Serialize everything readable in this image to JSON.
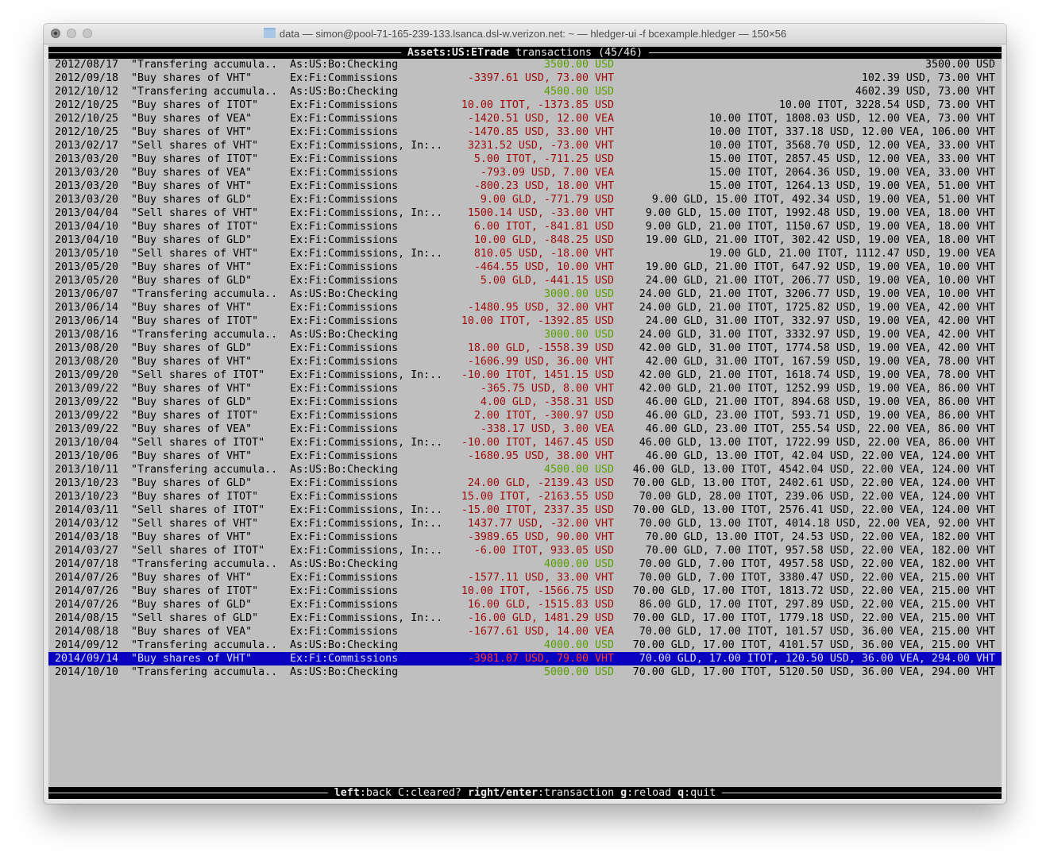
{
  "window": {
    "title": "data — simon@pool-71-165-239-133.lsanca.dsl-w.verizon.net: ~ — hledger-ui -f bcexample.hledger — 150×56"
  },
  "header": {
    "account": "Assets:US:ETrade",
    "suffix": " transactions (45/46)"
  },
  "footer": [
    {
      "key": "left",
      "action": ":back "
    },
    {
      "key": "C",
      "action": ":cleared? ",
      "plain": true
    },
    {
      "key": "right/enter",
      "action": ":transaction "
    },
    {
      "key": "g",
      "action": ":reload "
    },
    {
      "key": "q",
      "action": ":quit"
    }
  ],
  "colors": {
    "terminal_bg": "#bfbfbf",
    "negative": "#9c0a0a",
    "positive": "#58a000",
    "selection": "#0a00bf"
  },
  "selected_index": 44,
  "rows": [
    {
      "date": "2012/08/17",
      "desc": "\"Transfering accumula..",
      "account": "As:US:Bo:Checking",
      "change": "3500.00 USD",
      "tone": "green",
      "balance": "3500.00 USD"
    },
    {
      "date": "2012/09/18",
      "desc": "\"Buy shares of VHT\"",
      "account": "Ex:Fi:Commissions",
      "change": "-3397.61 USD, 73.00 VHT",
      "tone": "red",
      "balance": "102.39 USD, 73.00 VHT"
    },
    {
      "date": "2012/10/12",
      "desc": "\"Transfering accumula..",
      "account": "As:US:Bo:Checking",
      "change": "4500.00 USD",
      "tone": "green",
      "balance": "4602.39 USD, 73.00 VHT"
    },
    {
      "date": "2012/10/25",
      "desc": "\"Buy shares of ITOT\"",
      "account": "Ex:Fi:Commissions",
      "change": "10.00 ITOT, -1373.85 USD",
      "tone": "red",
      "balance": "10.00 ITOT, 3228.54 USD, 73.00 VHT"
    },
    {
      "date": "2012/10/25",
      "desc": "\"Buy shares of VEA\"",
      "account": "Ex:Fi:Commissions",
      "change": "-1420.51 USD, 12.00 VEA",
      "tone": "red",
      "balance": "10.00 ITOT, 1808.03 USD, 12.00 VEA, 73.00 VHT"
    },
    {
      "date": "2012/10/25",
      "desc": "\"Buy shares of VHT\"",
      "account": "Ex:Fi:Commissions",
      "change": "-1470.85 USD, 33.00 VHT",
      "tone": "red",
      "balance": "10.00 ITOT, 337.18 USD, 12.00 VEA, 106.00 VHT"
    },
    {
      "date": "2013/02/17",
      "desc": "\"Sell shares of VHT\"",
      "account": "Ex:Fi:Commissions, In:..",
      "change": "3231.52 USD, -73.00 VHT",
      "tone": "red",
      "balance": "10.00 ITOT, 3568.70 USD, 12.00 VEA, 33.00 VHT"
    },
    {
      "date": "2013/03/20",
      "desc": "\"Buy shares of ITOT\"",
      "account": "Ex:Fi:Commissions",
      "change": "5.00 ITOT, -711.25 USD",
      "tone": "red",
      "balance": "15.00 ITOT, 2857.45 USD, 12.00 VEA, 33.00 VHT"
    },
    {
      "date": "2013/03/20",
      "desc": "\"Buy shares of VEA\"",
      "account": "Ex:Fi:Commissions",
      "change": "-793.09 USD, 7.00 VEA",
      "tone": "red",
      "balance": "15.00 ITOT, 2064.36 USD, 19.00 VEA, 33.00 VHT"
    },
    {
      "date": "2013/03/20",
      "desc": "\"Buy shares of VHT\"",
      "account": "Ex:Fi:Commissions",
      "change": "-800.23 USD, 18.00 VHT",
      "tone": "red",
      "balance": "15.00 ITOT, 1264.13 USD, 19.00 VEA, 51.00 VHT"
    },
    {
      "date": "2013/03/20",
      "desc": "\"Buy shares of GLD\"",
      "account": "Ex:Fi:Commissions",
      "change": "9.00 GLD, -771.79 USD",
      "tone": "red",
      "balance": "9.00 GLD, 15.00 ITOT, 492.34 USD, 19.00 VEA, 51.00 VHT"
    },
    {
      "date": "2013/04/04",
      "desc": "\"Sell shares of VHT\"",
      "account": "Ex:Fi:Commissions, In:..",
      "change": "1500.14 USD, -33.00 VHT",
      "tone": "red",
      "balance": "9.00 GLD, 15.00 ITOT, 1992.48 USD, 19.00 VEA, 18.00 VHT"
    },
    {
      "date": "2013/04/10",
      "desc": "\"Buy shares of ITOT\"",
      "account": "Ex:Fi:Commissions",
      "change": "6.00 ITOT, -841.81 USD",
      "tone": "red",
      "balance": "9.00 GLD, 21.00 ITOT, 1150.67 USD, 19.00 VEA, 18.00 VHT"
    },
    {
      "date": "2013/04/10",
      "desc": "\"Buy shares of GLD\"",
      "account": "Ex:Fi:Commissions",
      "change": "10.00 GLD, -848.25 USD",
      "tone": "red",
      "balance": "19.00 GLD, 21.00 ITOT, 302.42 USD, 19.00 VEA, 18.00 VHT"
    },
    {
      "date": "2013/05/10",
      "desc": "\"Sell shares of VHT\"",
      "account": "Ex:Fi:Commissions, In:..",
      "change": "810.05 USD, -18.00 VHT",
      "tone": "red",
      "balance": "19.00 GLD, 21.00 ITOT, 1112.47 USD, 19.00 VEA"
    },
    {
      "date": "2013/05/20",
      "desc": "\"Buy shares of VHT\"",
      "account": "Ex:Fi:Commissions",
      "change": "-464.55 USD, 10.00 VHT",
      "tone": "red",
      "balance": "19.00 GLD, 21.00 ITOT, 647.92 USD, 19.00 VEA, 10.00 VHT"
    },
    {
      "date": "2013/05/20",
      "desc": "\"Buy shares of GLD\"",
      "account": "Ex:Fi:Commissions",
      "change": "5.00 GLD, -441.15 USD",
      "tone": "red",
      "balance": "24.00 GLD, 21.00 ITOT, 206.77 USD, 19.00 VEA, 10.00 VHT"
    },
    {
      "date": "2013/06/07",
      "desc": "\"Transfering accumula..",
      "account": "As:US:Bo:Checking",
      "change": "3000.00 USD",
      "tone": "green",
      "balance": "24.00 GLD, 21.00 ITOT, 3206.77 USD, 19.00 VEA, 10.00 VHT"
    },
    {
      "date": "2013/06/14",
      "desc": "\"Buy shares of VHT\"",
      "account": "Ex:Fi:Commissions",
      "change": "-1480.95 USD, 32.00 VHT",
      "tone": "red",
      "balance": "24.00 GLD, 21.00 ITOT, 1725.82 USD, 19.00 VEA, 42.00 VHT"
    },
    {
      "date": "2013/06/14",
      "desc": "\"Buy shares of ITOT\"",
      "account": "Ex:Fi:Commissions",
      "change": "10.00 ITOT, -1392.85 USD",
      "tone": "red",
      "balance": "24.00 GLD, 31.00 ITOT, 332.97 USD, 19.00 VEA, 42.00 VHT"
    },
    {
      "date": "2013/08/16",
      "desc": "\"Transfering accumula..",
      "account": "As:US:Bo:Checking",
      "change": "3000.00 USD",
      "tone": "green",
      "balance": "24.00 GLD, 31.00 ITOT, 3332.97 USD, 19.00 VEA, 42.00 VHT"
    },
    {
      "date": "2013/08/20",
      "desc": "\"Buy shares of GLD\"",
      "account": "Ex:Fi:Commissions",
      "change": "18.00 GLD, -1558.39 USD",
      "tone": "red",
      "balance": "42.00 GLD, 31.00 ITOT, 1774.58 USD, 19.00 VEA, 42.00 VHT"
    },
    {
      "date": "2013/08/20",
      "desc": "\"Buy shares of VHT\"",
      "account": "Ex:Fi:Commissions",
      "change": "-1606.99 USD, 36.00 VHT",
      "tone": "red",
      "balance": "42.00 GLD, 31.00 ITOT, 167.59 USD, 19.00 VEA, 78.00 VHT"
    },
    {
      "date": "2013/09/20",
      "desc": "\"Sell shares of ITOT\"",
      "account": "Ex:Fi:Commissions, In:..",
      "change": "-10.00 ITOT, 1451.15 USD",
      "tone": "red",
      "balance": "42.00 GLD, 21.00 ITOT, 1618.74 USD, 19.00 VEA, 78.00 VHT"
    },
    {
      "date": "2013/09/22",
      "desc": "\"Buy shares of VHT\"",
      "account": "Ex:Fi:Commissions",
      "change": "-365.75 USD, 8.00 VHT",
      "tone": "red",
      "balance": "42.00 GLD, 21.00 ITOT, 1252.99 USD, 19.00 VEA, 86.00 VHT"
    },
    {
      "date": "2013/09/22",
      "desc": "\"Buy shares of GLD\"",
      "account": "Ex:Fi:Commissions",
      "change": "4.00 GLD, -358.31 USD",
      "tone": "red",
      "balance": "46.00 GLD, 21.00 ITOT, 894.68 USD, 19.00 VEA, 86.00 VHT"
    },
    {
      "date": "2013/09/22",
      "desc": "\"Buy shares of ITOT\"",
      "account": "Ex:Fi:Commissions",
      "change": "2.00 ITOT, -300.97 USD",
      "tone": "red",
      "balance": "46.00 GLD, 23.00 ITOT, 593.71 USD, 19.00 VEA, 86.00 VHT"
    },
    {
      "date": "2013/09/22",
      "desc": "\"Buy shares of VEA\"",
      "account": "Ex:Fi:Commissions",
      "change": "-338.17 USD, 3.00 VEA",
      "tone": "red",
      "balance": "46.00 GLD, 23.00 ITOT, 255.54 USD, 22.00 VEA, 86.00 VHT"
    },
    {
      "date": "2013/10/04",
      "desc": "\"Sell shares of ITOT\"",
      "account": "Ex:Fi:Commissions, In:..",
      "change": "-10.00 ITOT, 1467.45 USD",
      "tone": "red",
      "balance": "46.00 GLD, 13.00 ITOT, 1722.99 USD, 22.00 VEA, 86.00 VHT"
    },
    {
      "date": "2013/10/06",
      "desc": "\"Buy shares of VHT\"",
      "account": "Ex:Fi:Commissions",
      "change": "-1680.95 USD, 38.00 VHT",
      "tone": "red",
      "balance": "46.00 GLD, 13.00 ITOT, 42.04 USD, 22.00 VEA, 124.00 VHT"
    },
    {
      "date": "2013/10/11",
      "desc": "\"Transfering accumula..",
      "account": "As:US:Bo:Checking",
      "change": "4500.00 USD",
      "tone": "green",
      "balance": "46.00 GLD, 13.00 ITOT, 4542.04 USD, 22.00 VEA, 124.00 VHT"
    },
    {
      "date": "2013/10/23",
      "desc": "\"Buy shares of GLD\"",
      "account": "Ex:Fi:Commissions",
      "change": "24.00 GLD, -2139.43 USD",
      "tone": "red",
      "balance": "70.00 GLD, 13.00 ITOT, 2402.61 USD, 22.00 VEA, 124.00 VHT"
    },
    {
      "date": "2013/10/23",
      "desc": "\"Buy shares of ITOT\"",
      "account": "Ex:Fi:Commissions",
      "change": "15.00 ITOT, -2163.55 USD",
      "tone": "red",
      "balance": "70.00 GLD, 28.00 ITOT, 239.06 USD, 22.00 VEA, 124.00 VHT"
    },
    {
      "date": "2014/03/11",
      "desc": "\"Sell shares of ITOT\"",
      "account": "Ex:Fi:Commissions, In:..",
      "change": "-15.00 ITOT, 2337.35 USD",
      "tone": "red",
      "balance": "70.00 GLD, 13.00 ITOT, 2576.41 USD, 22.00 VEA, 124.00 VHT"
    },
    {
      "date": "2014/03/12",
      "desc": "\"Sell shares of VHT\"",
      "account": "Ex:Fi:Commissions, In:..",
      "change": "1437.77 USD, -32.00 VHT",
      "tone": "red",
      "balance": "70.00 GLD, 13.00 ITOT, 4014.18 USD, 22.00 VEA, 92.00 VHT"
    },
    {
      "date": "2014/03/18",
      "desc": "\"Buy shares of VHT\"",
      "account": "Ex:Fi:Commissions",
      "change": "-3989.65 USD, 90.00 VHT",
      "tone": "red",
      "balance": "70.00 GLD, 13.00 ITOT, 24.53 USD, 22.00 VEA, 182.00 VHT"
    },
    {
      "date": "2014/03/27",
      "desc": "\"Sell shares of ITOT\"",
      "account": "Ex:Fi:Commissions, In:..",
      "change": "-6.00 ITOT, 933.05 USD",
      "tone": "red",
      "balance": "70.00 GLD, 7.00 ITOT, 957.58 USD, 22.00 VEA, 182.00 VHT"
    },
    {
      "date": "2014/07/18",
      "desc": "\"Transfering accumula..",
      "account": "As:US:Bo:Checking",
      "change": "4000.00 USD",
      "tone": "green",
      "balance": "70.00 GLD, 7.00 ITOT, 4957.58 USD, 22.00 VEA, 182.00 VHT"
    },
    {
      "date": "2014/07/26",
      "desc": "\"Buy shares of VHT\"",
      "account": "Ex:Fi:Commissions",
      "change": "-1577.11 USD, 33.00 VHT",
      "tone": "red",
      "balance": "70.00 GLD, 7.00 ITOT, 3380.47 USD, 22.00 VEA, 215.00 VHT"
    },
    {
      "date": "2014/07/26",
      "desc": "\"Buy shares of ITOT\"",
      "account": "Ex:Fi:Commissions",
      "change": "10.00 ITOT, -1566.75 USD",
      "tone": "red",
      "balance": "70.00 GLD, 17.00 ITOT, 1813.72 USD, 22.00 VEA, 215.00 VHT"
    },
    {
      "date": "2014/07/26",
      "desc": "\"Buy shares of GLD\"",
      "account": "Ex:Fi:Commissions",
      "change": "16.00 GLD, -1515.83 USD",
      "tone": "red",
      "balance": "86.00 GLD, 17.00 ITOT, 297.89 USD, 22.00 VEA, 215.00 VHT"
    },
    {
      "date": "2014/08/15",
      "desc": "\"Sell shares of GLD\"",
      "account": "Ex:Fi:Commissions, In:..",
      "change": "-16.00 GLD, 1481.29 USD",
      "tone": "red",
      "balance": "70.00 GLD, 17.00 ITOT, 1779.18 USD, 22.00 VEA, 215.00 VHT"
    },
    {
      "date": "2014/08/18",
      "desc": "\"Buy shares of VEA\"",
      "account": "Ex:Fi:Commissions",
      "change": "-1677.61 USD, 14.00 VEA",
      "tone": "red",
      "balance": "70.00 GLD, 17.00 ITOT, 101.57 USD, 36.00 VEA, 215.00 VHT"
    },
    {
      "date": "2014/09/12",
      "desc": "\"Transfering accumula..",
      "account": "As:US:Bo:Checking",
      "change": "4000.00 USD",
      "tone": "green",
      "balance": "70.00 GLD, 17.00 ITOT, 4101.57 USD, 36.00 VEA, 215.00 VHT"
    },
    {
      "date": "2014/09/14",
      "desc": "\"Buy shares of VHT\"",
      "account": "Ex:Fi:Commissions",
      "change": "-3981.07 USD, 79.00 VHT",
      "tone": "red",
      "balance": "70.00 GLD, 17.00 ITOT, 120.50 USD, 36.00 VEA, 294.00 VHT"
    },
    {
      "date": "2014/10/10",
      "desc": "\"Transfering accumula..",
      "account": "As:US:Bo:Checking",
      "change": "5000.00 USD",
      "tone": "green",
      "balance": "70.00 GLD, 17.00 ITOT, 5120.50 USD, 36.00 VEA, 294.00 VHT"
    }
  ]
}
